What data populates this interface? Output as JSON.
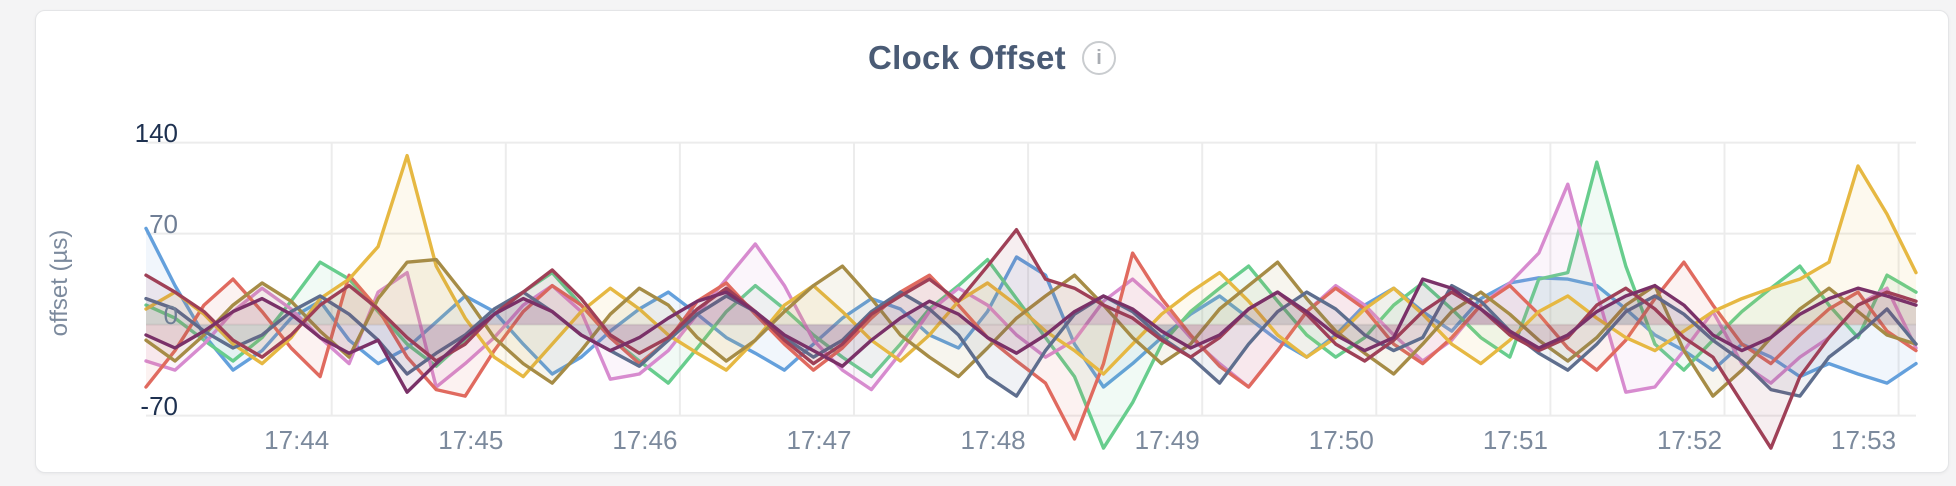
{
  "card": {
    "title": "Clock Offset",
    "info_icon_glyph": "i"
  },
  "colors": {
    "page_background": "#f4f4f5",
    "card_background": "#ffffff",
    "grid": "#ececec",
    "title_text": "#4a5b75",
    "tick_major": "#1e3150",
    "tick_minor": "#6f7e95",
    "axis_label": "#7c8a9d"
  },
  "chart_data": {
    "type": "line",
    "title": "Clock Offset",
    "xlabel": "",
    "ylabel": "offset (µs)",
    "ylim": [
      -95,
      150
    ],
    "grid": true,
    "legend_position": "none",
    "x_tick_labels": [
      "17:44",
      "17:45",
      "17:46",
      "17:47",
      "17:48",
      "17:49",
      "17:50",
      "17:51",
      "17:52",
      "17:53"
    ],
    "x_start": "17:42:56",
    "x_step_seconds": 10,
    "y_ticks": [
      {
        "label": "140",
        "value": 140,
        "major": true
      },
      {
        "label": "70",
        "value": 70,
        "major": false
      },
      {
        "label": "0",
        "value": 0,
        "major": false
      },
      {
        "label": "-70",
        "value": -70,
        "major": true
      }
    ],
    "series": [
      {
        "name": "series-1",
        "color": "#64a0dc",
        "values": [
          74,
          30,
          -8,
          -35,
          -20,
          5,
          18,
          -12,
          -30,
          -18,
          2,
          22,
          10,
          -15,
          -38,
          -25,
          -5,
          12,
          25,
          8,
          -10,
          -22,
          -35,
          -15,
          5,
          20,
          12,
          -8,
          -18,
          10,
          52,
          38,
          -15,
          -48,
          -30,
          -10,
          8,
          22,
          5,
          -12,
          -25,
          -8,
          15,
          28,
          10,
          -5,
          20,
          32,
          36,
          35,
          30,
          12,
          -8,
          -20,
          -35,
          -15,
          -25,
          -40,
          -30,
          -38,
          -45,
          -30
        ]
      },
      {
        "name": "series-2",
        "color": "#67cd8d",
        "values": [
          15,
          5,
          -12,
          -28,
          -10,
          18,
          48,
          35,
          10,
          -15,
          -32,
          -12,
          8,
          25,
          40,
          15,
          -10,
          -28,
          -45,
          -18,
          10,
          30,
          12,
          -8,
          -25,
          -40,
          -15,
          12,
          30,
          50,
          20,
          -10,
          -40,
          -95,
          -60,
          -15,
          10,
          28,
          45,
          18,
          -8,
          -25,
          -10,
          15,
          32,
          12,
          -10,
          -25,
          35,
          40,
          125,
          45,
          -15,
          -35,
          -12,
          10,
          28,
          45,
          15,
          -10,
          38,
          25
        ]
      },
      {
        "name": "series-3",
        "color": "#d78bcf",
        "values": [
          -28,
          -35,
          -15,
          10,
          28,
          12,
          -10,
          -30,
          25,
          40,
          -48,
          -30,
          -10,
          15,
          30,
          10,
          -42,
          -38,
          -20,
          8,
          35,
          62,
          30,
          -12,
          -35,
          -50,
          -22,
          10,
          28,
          15,
          -8,
          -25,
          -12,
          18,
          35,
          15,
          -10,
          -30,
          -48,
          -20,
          10,
          30,
          15,
          -8,
          -28,
          -12,
          15,
          32,
          55,
          108,
          25,
          -52,
          -48,
          -20,
          10,
          -30,
          -45,
          -25,
          -10,
          15,
          28,
          -18
        ]
      },
      {
        "name": "series-4",
        "color": "#e06a5f",
        "values": [
          -48,
          -20,
          15,
          35,
          10,
          -18,
          -40,
          38,
          12,
          -25,
          -50,
          -55,
          -20,
          10,
          30,
          15,
          -10,
          -30,
          -12,
          18,
          32,
          8,
          -15,
          -35,
          -18,
          5,
          25,
          38,
          15,
          -10,
          -28,
          -45,
          -88,
          -30,
          55,
          20,
          -8,
          -32,
          -48,
          -20,
          10,
          28,
          12,
          -15,
          -30,
          -10,
          15,
          30,
          8,
          -18,
          -35,
          -12,
          20,
          48,
          15,
          -15,
          -30,
          -8,
          12,
          25,
          -5,
          -20
        ]
      },
      {
        "name": "series-5",
        "color": "#e6b842",
        "values": [
          12,
          25,
          8,
          -15,
          -30,
          -10,
          20,
          35,
          60,
          130,
          45,
          5,
          -25,
          -40,
          -15,
          10,
          28,
          12,
          -8,
          -22,
          -35,
          -12,
          15,
          30,
          10,
          -12,
          -28,
          -8,
          18,
          32,
          15,
          -5,
          -20,
          -38,
          -15,
          8,
          25,
          40,
          18,
          -8,
          -25,
          -10,
          12,
          28,
          8,
          -15,
          -30,
          -12,
          10,
          22,
          5,
          -10,
          -20,
          -5,
          10,
          20,
          28,
          35,
          48,
          122,
          85,
          40
        ]
      },
      {
        "name": "series-6",
        "color": "#a68c46",
        "values": [
          -12,
          -28,
          -8,
          15,
          32,
          18,
          -5,
          -25,
          20,
          48,
          50,
          22,
          -10,
          -30,
          -45,
          -20,
          8,
          28,
          15,
          -10,
          -28,
          -12,
          10,
          30,
          45,
          20,
          -8,
          -25,
          -40,
          -18,
          5,
          22,
          38,
          15,
          -10,
          -30,
          -15,
          12,
          30,
          48,
          20,
          -5,
          -22,
          -38,
          -15,
          10,
          25,
          8,
          -12,
          -28,
          -10,
          15,
          30,
          -20,
          -55,
          -35,
          -10,
          12,
          28,
          10,
          -8,
          -15
        ]
      },
      {
        "name": "series-7",
        "color": "#5e6e8e",
        "values": [
          20,
          12,
          -5,
          -18,
          -8,
          10,
          22,
          8,
          -12,
          -38,
          -22,
          -8,
          12,
          25,
          10,
          -8,
          -20,
          -32,
          -12,
          8,
          22,
          10,
          -10,
          -25,
          -12,
          10,
          25,
          12,
          -8,
          -40,
          -55,
          -20,
          8,
          22,
          10,
          -10,
          -25,
          -45,
          -15,
          10,
          25,
          12,
          -8,
          -20,
          -10,
          30,
          18,
          -5,
          -22,
          -35,
          -15,
          10,
          22,
          8,
          -12,
          -28,
          -50,
          -55,
          -25,
          -8,
          12,
          -15
        ]
      },
      {
        "name": "series-8",
        "color": "#9f4057",
        "values": [
          38,
          25,
          10,
          -12,
          -25,
          -8,
          15,
          30,
          12,
          -10,
          -28,
          -15,
          8,
          25,
          42,
          20,
          -8,
          -22,
          -10,
          12,
          28,
          10,
          -12,
          -30,
          -15,
          8,
          22,
          35,
          18,
          45,
          73,
          35,
          28,
          15,
          5,
          -12,
          -25,
          -10,
          12,
          25,
          8,
          -15,
          -28,
          -12,
          10,
          25,
          12,
          -8,
          -20,
          -10,
          15,
          28,
          12,
          -10,
          -25,
          -60,
          -95,
          -40,
          -10,
          15,
          25,
          18
        ]
      },
      {
        "name": "series-9",
        "color": "#7a3168",
        "values": [
          -8,
          -18,
          -5,
          10,
          20,
          8,
          -10,
          -22,
          -12,
          -52,
          -30,
          -10,
          8,
          20,
          10,
          -8,
          -20,
          -10,
          5,
          18,
          25,
          10,
          -8,
          -20,
          -32,
          -12,
          5,
          18,
          8,
          -10,
          -22,
          -8,
          10,
          22,
          12,
          -5,
          -18,
          -8,
          12,
          25,
          10,
          -8,
          -20,
          -10,
          35,
          28,
          12,
          -5,
          -18,
          -8,
          10,
          22,
          30,
          15,
          -8,
          -20,
          -10,
          8,
          20,
          28,
          22,
          15
        ]
      }
    ]
  }
}
